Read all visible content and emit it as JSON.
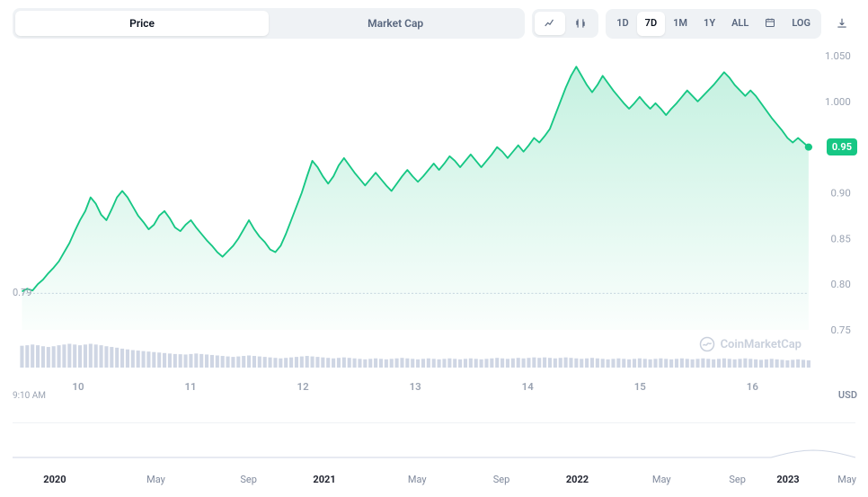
{
  "tabs": {
    "price": "Price",
    "market_cap": "Market Cap",
    "active": "price"
  },
  "range": {
    "options": [
      "1D",
      "7D",
      "1M",
      "1Y",
      "ALL"
    ],
    "active": "7D",
    "log": "LOG"
  },
  "chart": {
    "type": "area",
    "line_color": "#16c784",
    "fill_top": "rgba(22,199,132,0.25)",
    "fill_bottom": "rgba(22,199,132,0.02)",
    "background": "#ffffff",
    "grid_color": "#cfd6e4",
    "volume_bar_color": "#cfd6e4",
    "ylim": [
      0.75,
      1.05
    ],
    "yticks": [
      0.75,
      0.8,
      0.85,
      0.9,
      0.95,
      1.0,
      1.05
    ],
    "ytick_labels": [
      "0.75",
      "0.80",
      "0.85",
      "0.90",
      "0.95",
      "1.000",
      "1.050"
    ],
    "start_value": 0.79,
    "start_label": "0.79",
    "current_value": 0.95,
    "current_label": "0.95",
    "x_start_label": "9:10 AM",
    "x_days": [
      "10",
      "11",
      "12",
      "13",
      "14",
      "15",
      "16"
    ],
    "usd_label": "USD",
    "watermark": "CoinMarketCap",
    "series": [
      0.792,
      0.795,
      0.793,
      0.8,
      0.805,
      0.812,
      0.818,
      0.825,
      0.835,
      0.845,
      0.858,
      0.87,
      0.88,
      0.895,
      0.888,
      0.876,
      0.87,
      0.882,
      0.895,
      0.902,
      0.895,
      0.885,
      0.875,
      0.868,
      0.86,
      0.865,
      0.875,
      0.88,
      0.872,
      0.862,
      0.858,
      0.865,
      0.87,
      0.862,
      0.855,
      0.848,
      0.842,
      0.835,
      0.83,
      0.836,
      0.842,
      0.85,
      0.86,
      0.87,
      0.86,
      0.852,
      0.846,
      0.838,
      0.835,
      0.842,
      0.855,
      0.87,
      0.885,
      0.9,
      0.918,
      0.935,
      0.928,
      0.918,
      0.91,
      0.918,
      0.93,
      0.938,
      0.93,
      0.922,
      0.915,
      0.908,
      0.915,
      0.922,
      0.915,
      0.908,
      0.902,
      0.91,
      0.918,
      0.925,
      0.918,
      0.912,
      0.918,
      0.925,
      0.932,
      0.925,
      0.932,
      0.94,
      0.935,
      0.928,
      0.935,
      0.942,
      0.935,
      0.928,
      0.935,
      0.942,
      0.95,
      0.945,
      0.938,
      0.945,
      0.952,
      0.945,
      0.952,
      0.96,
      0.955,
      0.962,
      0.97,
      0.985,
      1.0,
      1.015,
      1.028,
      1.038,
      1.028,
      1.018,
      1.01,
      1.018,
      1.028,
      1.02,
      1.012,
      1.005,
      0.998,
      0.992,
      0.998,
      1.005,
      0.998,
      0.992,
      0.998,
      0.992,
      0.985,
      0.992,
      0.998,
      1.005,
      1.012,
      1.006,
      1.0,
      1.006,
      1.012,
      1.018,
      1.025,
      1.032,
      1.026,
      1.018,
      1.012,
      1.006,
      1.012,
      1.006,
      0.998,
      0.99,
      0.982,
      0.975,
      0.968,
      0.96,
      0.955,
      0.96,
      0.955,
      0.95
    ],
    "volume": [
      0.9,
      0.92,
      0.95,
      0.92,
      0.88,
      0.85,
      0.88,
      0.92,
      0.95,
      0.98,
      0.95,
      0.92,
      0.95,
      0.98,
      0.95,
      0.92,
      0.88,
      0.85,
      0.82,
      0.78,
      0.75,
      0.72,
      0.7,
      0.68,
      0.66,
      0.64,
      0.62,
      0.6,
      0.58,
      0.56,
      0.55,
      0.54,
      0.56,
      0.58,
      0.56,
      0.54,
      0.52,
      0.5,
      0.48,
      0.46,
      0.44,
      0.46,
      0.48,
      0.5,
      0.48,
      0.46,
      0.44,
      0.42,
      0.4,
      0.38,
      0.4,
      0.42,
      0.44,
      0.46,
      0.48,
      0.46,
      0.44,
      0.42,
      0.4,
      0.38,
      0.4,
      0.42,
      0.4,
      0.38,
      0.36,
      0.34,
      0.36,
      0.38,
      0.36,
      0.34,
      0.36,
      0.38,
      0.4,
      0.38,
      0.36,
      0.34,
      0.36,
      0.38,
      0.36,
      0.34,
      0.36,
      0.38,
      0.36,
      0.34,
      0.36,
      0.38,
      0.36,
      0.34,
      0.36,
      0.38,
      0.4,
      0.38,
      0.36,
      0.38,
      0.4,
      0.38,
      0.4,
      0.42,
      0.4,
      0.42,
      0.4,
      0.38,
      0.4,
      0.42,
      0.4,
      0.38,
      0.36,
      0.38,
      0.4,
      0.38,
      0.36,
      0.34,
      0.36,
      0.38,
      0.36,
      0.34,
      0.36,
      0.38,
      0.36,
      0.34,
      0.36,
      0.38,
      0.36,
      0.34,
      0.36,
      0.38,
      0.36,
      0.34,
      0.36,
      0.38,
      0.36,
      0.34,
      0.36,
      0.38,
      0.36,
      0.34,
      0.36,
      0.38,
      0.36,
      0.34,
      0.32,
      0.34,
      0.36,
      0.34,
      0.32,
      0.3,
      0.32,
      0.34,
      0.32,
      0.3
    ]
  },
  "brush": {
    "ticks": [
      {
        "label": "2020",
        "bold": true,
        "pos": 5
      },
      {
        "label": "May",
        "bold": false,
        "pos": 17
      },
      {
        "label": "Sep",
        "bold": false,
        "pos": 28
      },
      {
        "label": "2021",
        "bold": true,
        "pos": 37
      },
      {
        "label": "May",
        "bold": false,
        "pos": 48
      },
      {
        "label": "Sep",
        "bold": false,
        "pos": 58
      },
      {
        "label": "2022",
        "bold": true,
        "pos": 67
      },
      {
        "label": "May",
        "bold": false,
        "pos": 77
      },
      {
        "label": "Sep",
        "bold": false,
        "pos": 86
      },
      {
        "label": "2023",
        "bold": true,
        "pos": 92
      },
      {
        "label": "May",
        "bold": false,
        "pos": 99
      }
    ]
  }
}
